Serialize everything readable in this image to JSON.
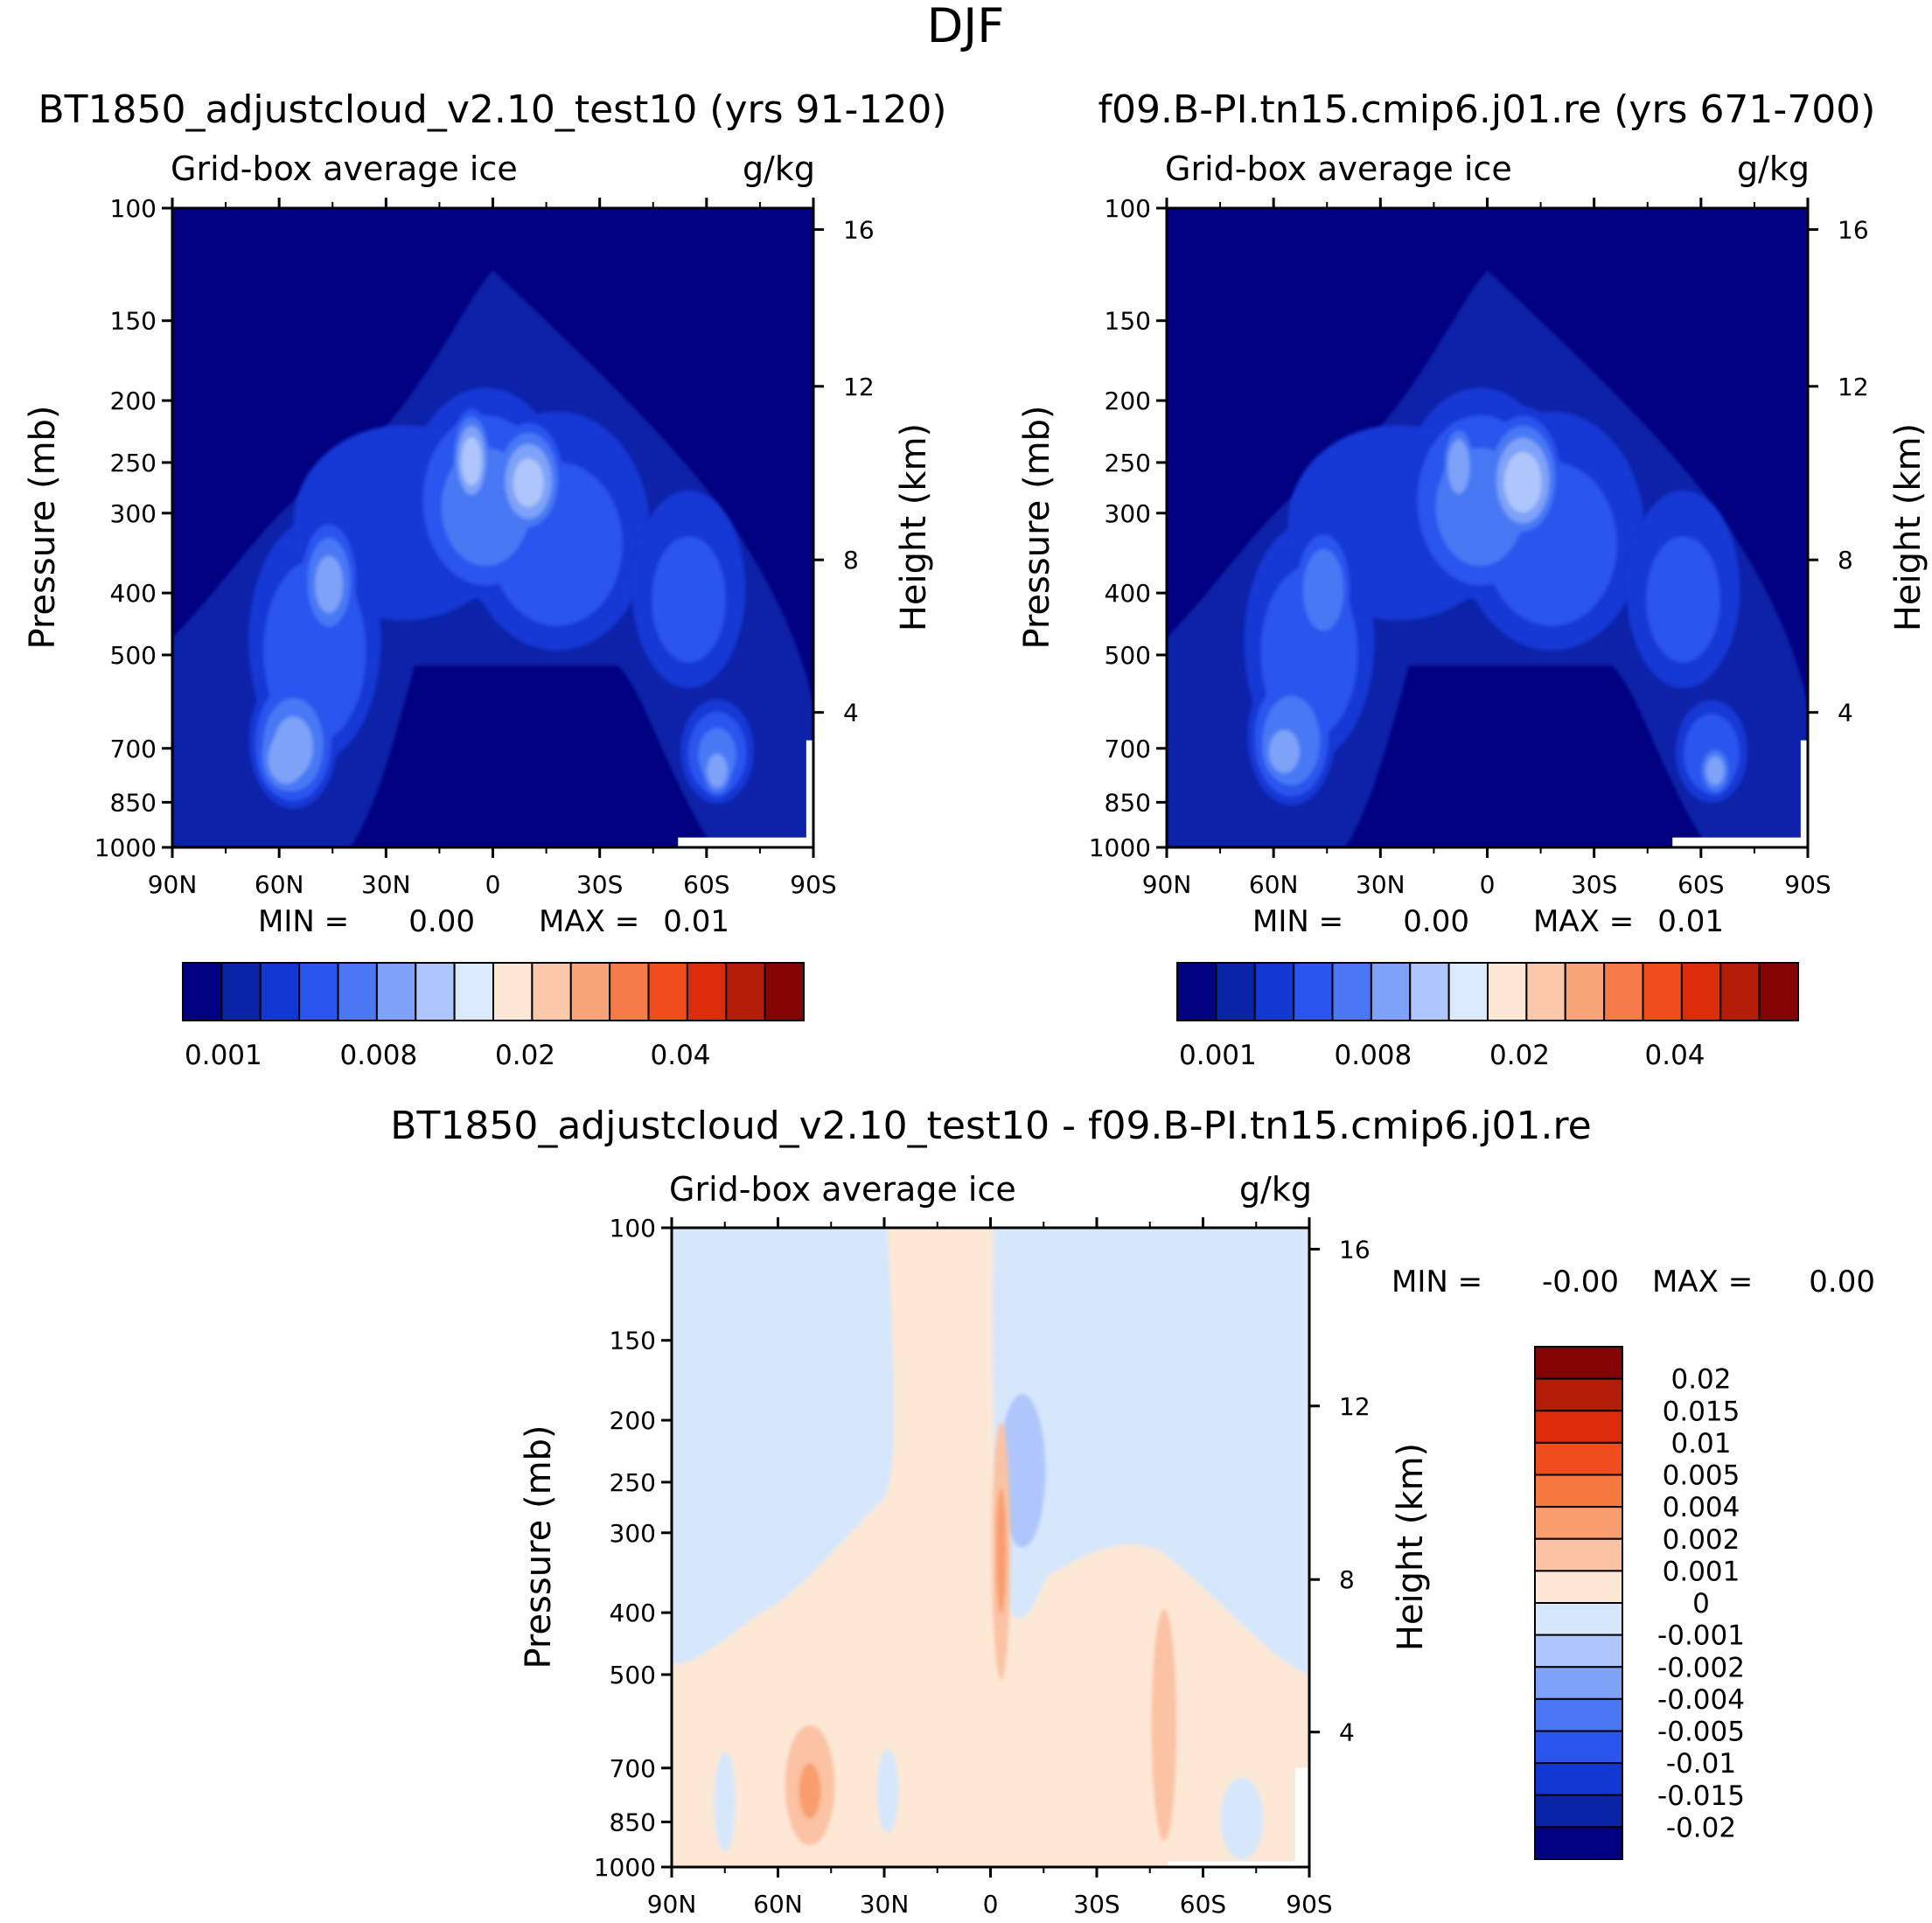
{
  "figure": {
    "title": "DJF"
  },
  "colors": {
    "ice_scale": [
      "#000080",
      "#0a24a8",
      "#1238d4",
      "#2a55ee",
      "#4a78f5",
      "#7ea2f8",
      "#aec6fb",
      "#dbe9fd",
      "#fde8d6",
      "#fbc8aa",
      "#f8a57a",
      "#f57b4a",
      "#f04d1f",
      "#dc2c0c",
      "#b31c06",
      "#840404"
    ],
    "diff_scale": [
      "#000080",
      "#0a24a8",
      "#1238d4",
      "#2a55ee",
      "#4a78f5",
      "#7ea2f8",
      "#aec6fb",
      "#d6e7fc",
      "#fde8d6",
      "#fbc2a3",
      "#f99c6e",
      "#f6793f",
      "#f04d1f",
      "#dc2c0c",
      "#b31c06",
      "#840404"
    ]
  },
  "chart_data": [
    {
      "type": "heatmap",
      "panel": "case",
      "title": "BT1850_adjustcloud_v2.10_test10 (yrs 91-120)",
      "subtitle_left": "Grid-box average ice",
      "subtitle_right": "g/kg",
      "xlabel": "",
      "ylabel": "Pressure (mb)",
      "ylabel_right": "Height (km)",
      "x_ticks": [
        "90N",
        "60N",
        "30N",
        "0",
        "30S",
        "60S",
        "90S"
      ],
      "x_values": [
        90,
        60,
        30,
        0,
        -30,
        -60,
        -90
      ],
      "xlim": [
        90,
        -90
      ],
      "y_ticks": [
        100,
        150,
        200,
        250,
        300,
        400,
        500,
        700,
        850,
        1000
      ],
      "ylim": [
        1000,
        100
      ],
      "y_scale": "log",
      "right_ticks": [
        16,
        12,
        8,
        4
      ],
      "right_tick_pressure": [
        108,
        190,
        355,
        615
      ],
      "min_label": "MIN =",
      "min_value": "0.00",
      "max_label": "MAX =",
      "max_value": "0.01",
      "colorbar_labels": [
        "0.001",
        "0.008",
        "0.02",
        "0.04"
      ],
      "blobs": [
        {
          "lat": 58,
          "p": 730,
          "dlat": 10,
          "dp": 210,
          "v": 0.95
        },
        {
          "lat": 56,
          "p": 700,
          "dlat": 14,
          "dp": 320,
          "v": 0.8
        },
        {
          "lat": 46,
          "p": 390,
          "dlat": 10,
          "dp": 170,
          "v": 0.8
        },
        {
          "lat": 50,
          "p": 520,
          "dlat": 22,
          "dp": 420,
          "v": 0.55
        },
        {
          "lat": 6,
          "p": 250,
          "dlat": 7,
          "dp": 90,
          "v": 1.05
        },
        {
          "lat": -10,
          "p": 270,
          "dlat": 12,
          "dp": 110,
          "v": 1.0
        },
        {
          "lat": 2,
          "p": 300,
          "dlat": 25,
          "dp": 210,
          "v": 0.65
        },
        {
          "lat": -18,
          "p": 350,
          "dlat": 32,
          "dp": 290,
          "v": 0.45
        },
        {
          "lat": 25,
          "p": 330,
          "dlat": 40,
          "dp": 240,
          "v": 0.35
        },
        {
          "lat": -63,
          "p": 760,
          "dlat": 6,
          "dp": 160,
          "v": 0.9
        },
        {
          "lat": -63,
          "p": 720,
          "dlat": 12,
          "dp": 260,
          "v": 0.6
        },
        {
          "lat": -55,
          "p": 420,
          "dlat": 20,
          "dp": 300,
          "v": 0.4
        }
      ]
    },
    {
      "type": "heatmap",
      "panel": "control",
      "title": "f09.B-PI.tn15.cmip6.j01.re (yrs 671-700)",
      "subtitle_left": "Grid-box average ice",
      "subtitle_right": "g/kg",
      "xlabel": "",
      "ylabel": "Pressure (mb)",
      "ylabel_right": "Height (km)",
      "x_ticks": [
        "90N",
        "60N",
        "30N",
        "0",
        "30S",
        "60S",
        "90S"
      ],
      "x_values": [
        90,
        60,
        30,
        0,
        -30,
        -60,
        -90
      ],
      "xlim": [
        90,
        -90
      ],
      "y_ticks": [
        100,
        150,
        200,
        250,
        300,
        400,
        500,
        700,
        850,
        1000
      ],
      "ylim": [
        1000,
        100
      ],
      "y_scale": "log",
      "right_ticks": [
        16,
        12,
        8,
        4
      ],
      "right_tick_pressure": [
        108,
        190,
        355,
        615
      ],
      "min_label": "MIN =",
      "min_value": "0.00",
      "max_label": "MAX =",
      "max_value": "0.01",
      "colorbar_labels": [
        "0.001",
        "0.008",
        "0.02",
        "0.04"
      ],
      "blobs": [
        {
          "lat": 57,
          "p": 710,
          "dlat": 9,
          "dp": 190,
          "v": 0.9
        },
        {
          "lat": 55,
          "p": 690,
          "dlat": 14,
          "dp": 320,
          "v": 0.75
        },
        {
          "lat": 46,
          "p": 400,
          "dlat": 10,
          "dp": 170,
          "v": 0.75
        },
        {
          "lat": 50,
          "p": 520,
          "dlat": 22,
          "dp": 420,
          "v": 0.5
        },
        {
          "lat": 8,
          "p": 255,
          "dlat": 6,
          "dp": 80,
          "v": 0.95
        },
        {
          "lat": -10,
          "p": 270,
          "dlat": 13,
          "dp": 120,
          "v": 1.05
        },
        {
          "lat": 2,
          "p": 300,
          "dlat": 25,
          "dp": 210,
          "v": 0.65
        },
        {
          "lat": -18,
          "p": 350,
          "dlat": 32,
          "dp": 290,
          "v": 0.45
        },
        {
          "lat": 25,
          "p": 330,
          "dlat": 40,
          "dp": 240,
          "v": 0.35
        },
        {
          "lat": -64,
          "p": 760,
          "dlat": 6,
          "dp": 150,
          "v": 0.85
        },
        {
          "lat": -63,
          "p": 720,
          "dlat": 12,
          "dp": 260,
          "v": 0.55
        },
        {
          "lat": -55,
          "p": 420,
          "dlat": 20,
          "dp": 300,
          "v": 0.4
        }
      ]
    },
    {
      "type": "heatmap",
      "panel": "difference",
      "title": "BT1850_adjustcloud_v2.10_test10 - f09.B-PI.tn15.cmip6.j01.re",
      "subtitle_left": "Grid-box average ice",
      "subtitle_right": "g/kg",
      "xlabel": "",
      "ylabel": "Pressure (mb)",
      "ylabel_right": "Height (km)",
      "x_ticks": [
        "90N",
        "60N",
        "30N",
        "0",
        "30S",
        "60S",
        "90S"
      ],
      "x_values": [
        90,
        60,
        30,
        0,
        -30,
        -60,
        -90
      ],
      "xlim": [
        90,
        -90
      ],
      "y_ticks": [
        100,
        150,
        200,
        250,
        300,
        400,
        500,
        700,
        850,
        1000
      ],
      "ylim": [
        1000,
        100
      ],
      "y_scale": "log",
      "right_ticks": [
        16,
        12,
        8,
        4
      ],
      "right_tick_pressure": [
        108,
        190,
        355,
        615
      ],
      "min_label": "MIN =",
      "min_value": "-0.00",
      "max_label": "MAX =",
      "max_value": "0.00",
      "colorbar_labels": [
        "0.02",
        "0.015",
        "0.01",
        "0.005",
        "0.004",
        "0.002",
        "0.001",
        "0",
        "-0.001",
        "-0.002",
        "-0.004",
        "-0.005",
        "-0.01",
        "-0.015",
        "-0.02"
      ],
      "regions": [
        {
          "kind": "neg_upper_left",
          "lat_range": [
            90,
            29
          ],
          "p_range": [
            100,
            480
          ],
          "value": -0.0005
        },
        {
          "kind": "neg_upper_right",
          "lat_range": [
            -1,
            -90
          ],
          "p_range": [
            100,
            500
          ],
          "value": -0.0005
        },
        {
          "kind": "neg_core",
          "lat": -9,
          "p": 250,
          "value": -0.0015
        },
        {
          "kind": "pos_mid",
          "lat": -3,
          "p": 330,
          "value": 0.0015
        },
        {
          "kind": "pos_low",
          "lat": 52,
          "p": 760,
          "value": 0.0015
        },
        {
          "kind": "pos_low_core",
          "lat": 51,
          "p": 760,
          "value": 0.003
        },
        {
          "kind": "pos_south",
          "lat": -48,
          "p": 620,
          "value": 0.0015
        },
        {
          "kind": "neg_low",
          "lat": 75,
          "p": 790,
          "value": -0.0005
        },
        {
          "kind": "neg_low",
          "lat": 28,
          "p": 760,
          "value": -0.0005
        },
        {
          "kind": "neg_low",
          "lat": -70,
          "p": 850,
          "value": -0.0005
        }
      ]
    }
  ]
}
